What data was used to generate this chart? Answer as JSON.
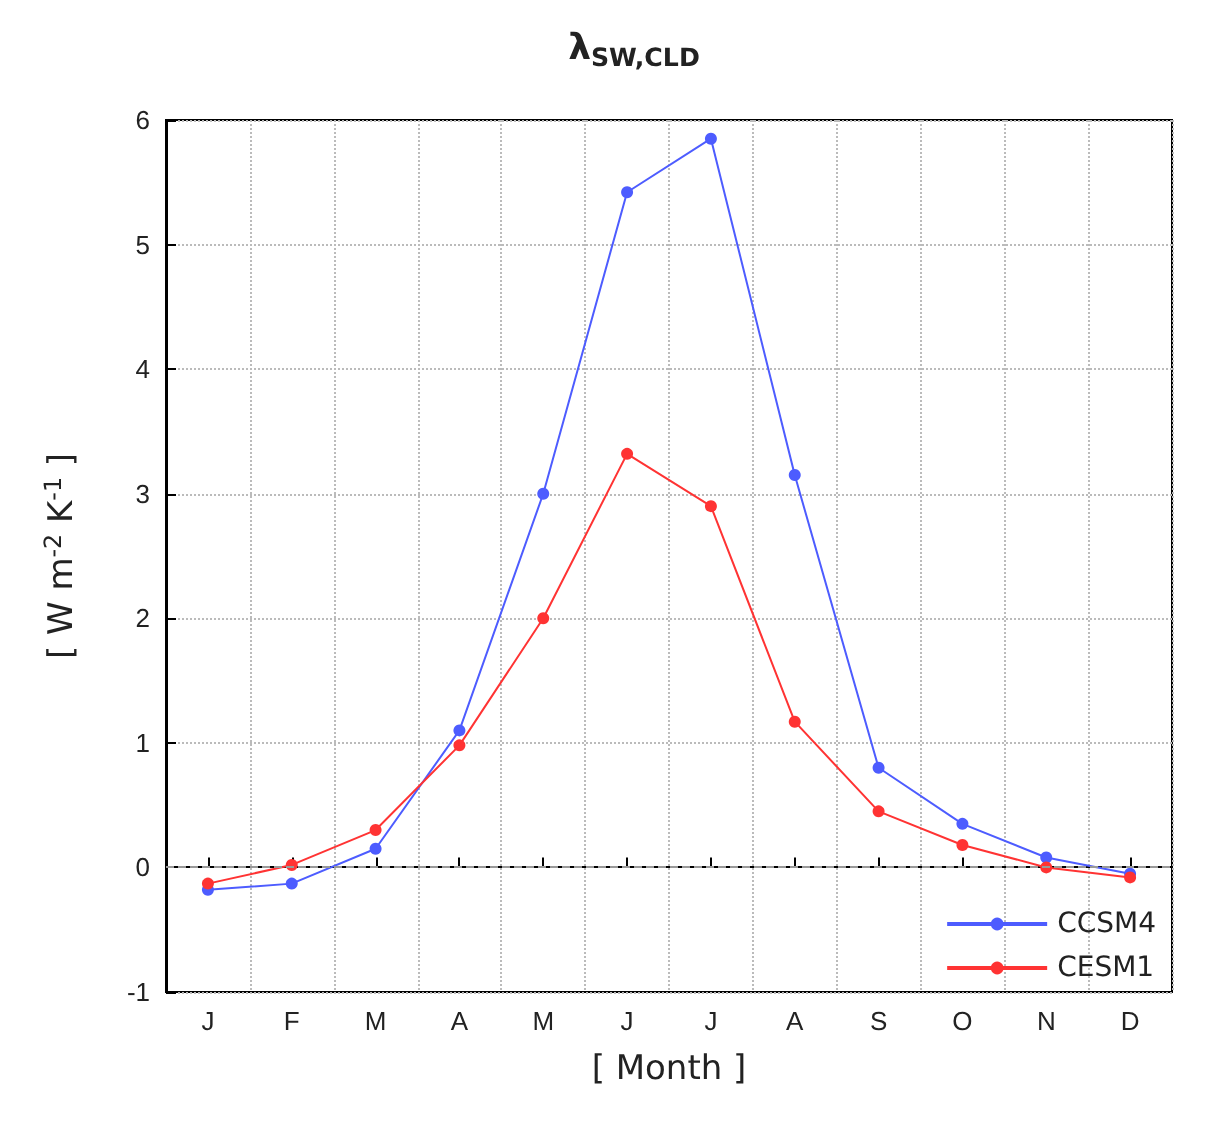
{
  "chart_data": {
    "type": "line",
    "title": "λ$_{SW,CLD}$",
    "xlabel": "[ Month ]",
    "ylabel": "[ W m$^{-2}$ K$^{-1}$ ]",
    "categories": [
      "J",
      "F",
      "M",
      "A",
      "M",
      "J",
      "J",
      "A",
      "S",
      "O",
      "N",
      "D"
    ],
    "series": [
      {
        "name": "CCSM4",
        "color": "#4d5cff",
        "values": [
          -0.18,
          -0.13,
          0.15,
          1.1,
          3.0,
          5.42,
          5.85,
          3.15,
          0.8,
          0.35,
          0.08,
          -0.05
        ]
      },
      {
        "name": "CESM1",
        "color": "#ff3333",
        "values": [
          -0.13,
          0.02,
          0.3,
          0.98,
          2.0,
          3.32,
          2.9,
          1.17,
          0.45,
          0.18,
          0.0,
          -0.08
        ]
      }
    ],
    "ylim": [
      -1,
      6
    ],
    "yticks": [
      -1,
      0,
      1,
      2,
      3,
      4,
      5,
      6
    ],
    "grid": true,
    "legend": "bottom right",
    "marker": "circle",
    "line_style": "solid",
    "ref_lines": [
      {
        "axis": "y",
        "value": 0,
        "color": "#999999",
        "line_style": "dashed"
      }
    ]
  }
}
